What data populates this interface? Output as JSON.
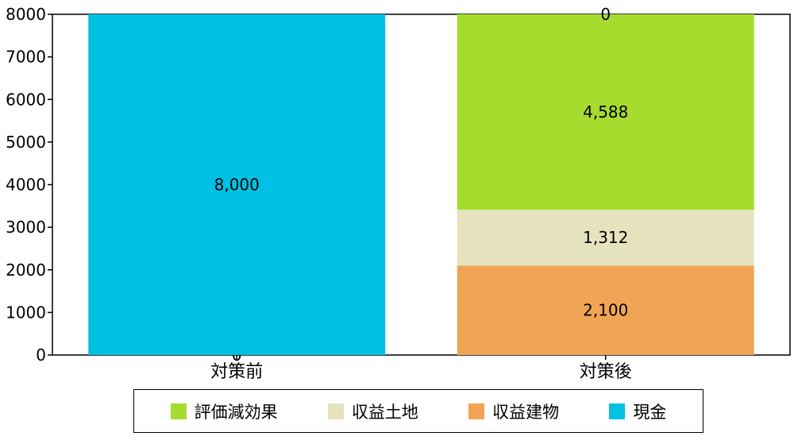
{
  "chart_data": {
    "type": "bar",
    "stacked": true,
    "categories": [
      "対策前",
      "対策後"
    ],
    "series": [
      {
        "name": "収益建物",
        "color": "#F0A556",
        "values": [
          0,
          2100
        ],
        "labels": [
          "",
          "2,100"
        ]
      },
      {
        "name": "収益土地",
        "color": "#E6E2BE",
        "values": [
          0,
          1312
        ],
        "labels": [
          "",
          "1,312"
        ]
      },
      {
        "name": "評価減効果",
        "color": "#A6DC2E",
        "values": [
          0,
          4588
        ],
        "labels": [
          "0",
          "4,588"
        ]
      },
      {
        "name": "現金",
        "color": "#00C0E4",
        "values": [
          8000,
          0
        ],
        "labels": [
          "8,000",
          "0"
        ]
      }
    ],
    "legend_order": [
      "評価減効果",
      "収益土地",
      "収益建物",
      "現金"
    ],
    "ylim": [
      0,
      8000
    ],
    "yticks": [
      0,
      1000,
      2000,
      3000,
      4000,
      5000,
      6000,
      7000,
      8000
    ],
    "grid": false,
    "legend_position": "bottom",
    "title": "",
    "xlabel": "",
    "ylabel": ""
  }
}
